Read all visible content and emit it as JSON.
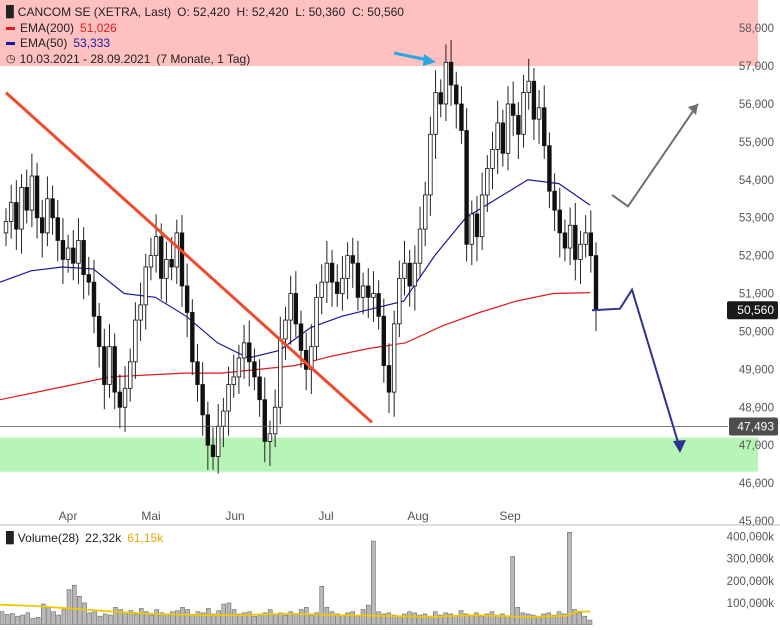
{
  "header": {
    "title": "CANCOM SE (XETRA, Last)",
    "ohlc": "O: 52,420  H: 52,420  L: 50,360  C: 50,560",
    "ema200_label": "EMA(200)",
    "ema200_value": "51,026",
    "ema50_label": "EMA(50)",
    "ema50_value": "53,333",
    "date_range": "10.03.2021 - 28.09.2021",
    "period": "(7 Monate, 1 Tag)"
  },
  "volume_legend": {
    "label": "Volume(28)",
    "value": "22,32k",
    "avg": "61,15k"
  },
  "colors": {
    "ema200": "#e31a1c",
    "ema50": "#1a1a9c",
    "trendline": "#f04a2e",
    "zone_top": "#ffc0c0",
    "zone_bottom": "#b6f5b6",
    "proj_up": "#6e6e6e",
    "proj_down": "#2e3192",
    "marker": "#2aa7e6",
    "volume_avg": "#f0c800"
  },
  "chart_data": [
    {
      "type": "candlestick",
      "title": "CANCOM SE (XETRA, Last)",
      "x_range": [
        "10.03.2021",
        "28.09.2021"
      ],
      "x_ticks": [
        "Apr",
        "Mai",
        "Jun",
        "Jul",
        "Aug",
        "Sep"
      ],
      "y_ticks": [
        "45,000",
        "46,000",
        "47,000",
        "48,000",
        "49,000",
        "50,000",
        "51,000",
        "52,000",
        "53,000",
        "54,000",
        "55,000",
        "56,000",
        "57,000",
        "58,000"
      ],
      "ylim": [
        45,
        58.4
      ],
      "last_price": 50.56,
      "last_price_label": "50,560",
      "horizontal_line": 47.493,
      "horizontal_line_label": "47,493",
      "resistance_zone": [
        57.0,
        58.4
      ],
      "support_zone": [
        46.3,
        47.2
      ],
      "candles_close": [
        52.9,
        53.4,
        52.7,
        53.8,
        53.2,
        54.1,
        53.0,
        52.6,
        53.5,
        53.0,
        52.4,
        51.9,
        52.2,
        51.8,
        52.4,
        51.5,
        51.3,
        50.4,
        49.6,
        48.6,
        49.6,
        48.4,
        48.0,
        48.5,
        49.2,
        50.3,
        50.7,
        51.7,
        52.0,
        52.5,
        51.4,
        51.9,
        51.7,
        52.6,
        51.2,
        50.5,
        49.2,
        48.6,
        47.8,
        47.0,
        46.7,
        47.5,
        47.9,
        48.6,
        48.8,
        49.3,
        49.7,
        49.2,
        48.8,
        48.2,
        47.1,
        47.3,
        48.0,
        49.8,
        50.3,
        51.0,
        50.2,
        49.5,
        49.0,
        49.6,
        50.9,
        51.3,
        51.8,
        51.3,
        51.0,
        51.4,
        52.0,
        51.8,
        50.9,
        51.2,
        50.9,
        51.0,
        50.4,
        49.1,
        48.4,
        50.2,
        51.4,
        51.8,
        51.2,
        51.8,
        52.7,
        53.6,
        55.2,
        56.3,
        56.0,
        57.1,
        56.5,
        56.0,
        55.3,
        52.3,
        53.1,
        52.5,
        53.6,
        54.3,
        54.8,
        55.5,
        54.7,
        56.0,
        55.7,
        55.2,
        56.3,
        56.6,
        55.6,
        55.9,
        54.9,
        53.7,
        53.2,
        52.6,
        52.2,
        52.8,
        51.9,
        52.3,
        52.6,
        52.0,
        50.56
      ],
      "series": [
        {
          "name": "EMA(200)",
          "value_label": "51,026",
          "values": [
            48.2,
            48.4,
            48.6,
            48.8,
            48.85,
            48.9,
            48.9,
            49.0,
            49.1,
            49.35,
            49.55,
            49.7,
            50.15,
            50.5,
            50.8,
            51.0,
            51.026
          ]
        },
        {
          "name": "EMA(50)",
          "value_label": "53,333",
          "values": [
            51.3,
            51.6,
            51.7,
            51.65,
            51.0,
            50.9,
            50.4,
            49.7,
            49.3,
            49.5,
            50.1,
            50.4,
            50.6,
            50.8,
            52.0,
            53.0,
            53.5,
            54.0,
            53.9,
            53.333
          ]
        }
      ],
      "annotations": {
        "downtrend_line": {
          "from": [
            "10.03.2021",
            56.3
          ],
          "to": [
            "19.07.2021",
            47.6
          ]
        },
        "projection_up": {
          "values": [
            53.6,
            53.3,
            56.0
          ]
        },
        "projection_down": {
          "values": [
            50.56,
            50.6,
            51.1,
            46.9
          ]
        }
      }
    },
    {
      "type": "bar",
      "title": "Volume(28)",
      "y_ticks": [
        "100,000k",
        "200,000k",
        "300,000k",
        "400,000k"
      ],
      "ylim": [
        0,
        430
      ],
      "unit": "k",
      "last_value_label": "22,32k",
      "average_label": "61,15k",
      "values": [
        60,
        48,
        52,
        40,
        45,
        55,
        30,
        35,
        95,
        80,
        60,
        45,
        70,
        160,
        180,
        130,
        100,
        55,
        65,
        40,
        50,
        45,
        80,
        70,
        55,
        65,
        50,
        75,
        60,
        45,
        70,
        55,
        50,
        60,
        65,
        80,
        70,
        45,
        60,
        55,
        75,
        50,
        65,
        95,
        100,
        70,
        50,
        55,
        60,
        40,
        45,
        55,
        70,
        50,
        55,
        45,
        60,
        50,
        70,
        80,
        45,
        55,
        175,
        80,
        60,
        50,
        45,
        55,
        60,
        40,
        70,
        90,
        380,
        60,
        50,
        55,
        45,
        40,
        50,
        60,
        55,
        45,
        50,
        40,
        60,
        45,
        55,
        50,
        40,
        65,
        50,
        45,
        55,
        40,
        50,
        60,
        45,
        50,
        40,
        310,
        80,
        55,
        50,
        45,
        40,
        50,
        55,
        45,
        60,
        50,
        420,
        70,
        55,
        40,
        22.32
      ],
      "average": [
        92,
        90,
        88,
        86,
        82,
        78,
        74,
        70,
        66,
        62,
        58,
        55,
        52,
        50,
        48,
        47,
        46,
        45,
        46,
        45,
        45,
        47,
        48,
        50,
        52,
        50,
        48,
        47,
        45,
        44,
        43,
        42,
        41,
        40,
        39,
        38,
        37,
        40,
        42,
        44,
        44,
        42,
        40,
        38,
        36,
        38,
        40,
        42,
        60,
        61.15
      ]
    }
  ]
}
